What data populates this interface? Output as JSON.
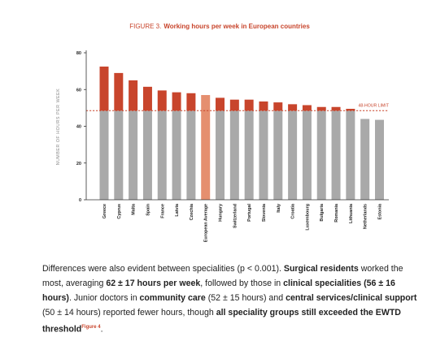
{
  "figure": {
    "label": "FIGURE 3.",
    "title": "Working hours per week in European countries"
  },
  "chart_data": {
    "type": "bar",
    "title": "Working hours per week in European countries",
    "ylabel": "NUMBER OF HOURS PER WEEK",
    "xlabel": "",
    "ylim": [
      0,
      80
    ],
    "yticks": [
      0,
      20,
      40,
      60,
      80
    ],
    "grid": false,
    "reference_line": {
      "label": "48-HOUR LIMIT",
      "value": 48.5
    },
    "categories": [
      "Greece",
      "Cyprus",
      "Malta",
      "Spain",
      "France",
      "Latvia",
      "Czechia",
      "European Average",
      "Hungary",
      "Switzerland",
      "Portugal",
      "Slovenia",
      "Italy",
      "Croatia",
      "Luxembourg",
      "Bulgaria",
      "Romania",
      "Lithuania",
      "Netherlands",
      "Estonia"
    ],
    "values": [
      72.5,
      69,
      65,
      61.5,
      59.5,
      58.5,
      58,
      57,
      55.5,
      54.5,
      54.5,
      53.5,
      53,
      52,
      51.5,
      50.5,
      50.5,
      49.5,
      44,
      43.5
    ],
    "highlight": "European Average",
    "colors": {
      "base": "#a9a9a9",
      "above_limit": "#c8452c",
      "highlight": "#e58f6f",
      "limit_line": "#c8452c"
    }
  },
  "body_text": {
    "s1": "Differences were also evident between specialities (p < 0.001). ",
    "b1": "Surgical residents",
    "s2": " worked the most, averaging ",
    "b2": "62 ± 17 hours per week",
    "s3": ", followed by those in ",
    "b3": "clinical specialities (56 ± 16 hours)",
    "s4": ". Junior doctors in ",
    "b4": "community care",
    "s5": " (52 ± 15 hours) and ",
    "b5": "central services/clinical support",
    "s6": " (50 ± 14 hours) reported fewer hours, though ",
    "b6": "all speciality groups still exceeded the EWTD threshold",
    "sup": "Figure 4",
    "s7": "."
  }
}
